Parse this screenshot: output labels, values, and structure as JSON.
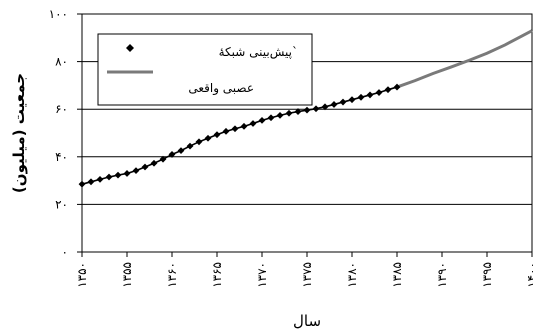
{
  "chart_data": {
    "type": "line",
    "xlabel": "سال",
    "ylabel": "جمعیت (میلیون)",
    "x_tick_labels": [
      "۱۳۵۰",
      "۱۳۵۵",
      "۱۳۶۰",
      "۱۳۶۵",
      "۱۳۷۰",
      "۱۳۷۵",
      "۱۳۸۰",
      "۱۳۸۵",
      "۱۳۹۰",
      "۱۳۹۵",
      "۱۴۰۰"
    ],
    "x_ticks": [
      1350,
      1355,
      1360,
      1365,
      1370,
      1375,
      1380,
      1385,
      1390,
      1395,
      1400
    ],
    "y_tick_labels": [
      "۰",
      "۲۰",
      "۴۰",
      "۶۰",
      "۸۰",
      "۱۰۰"
    ],
    "y_ticks": [
      0,
      20,
      40,
      60,
      80,
      100
    ],
    "xlim": [
      1350,
      1400
    ],
    "ylim": [
      0,
      100
    ],
    "grid": "horizontal",
    "legend_position": "top-left",
    "legend": [
      {
        "label": "پیش‌بینی شبکۀ`",
        "marker": "diamond"
      },
      {
        "label": "عصبی واقعی",
        "marker": "line"
      }
    ],
    "series": [
      {
        "marker": "diamond",
        "color": "#000000",
        "x": [
          1350,
          1351,
          1352,
          1353,
          1354,
          1355,
          1356,
          1357,
          1358,
          1359,
          1360,
          1361,
          1362,
          1363,
          1364,
          1365,
          1366,
          1367,
          1368,
          1369,
          1370,
          1371,
          1372,
          1373,
          1374,
          1375,
          1376,
          1377,
          1378,
          1379,
          1380,
          1381,
          1382,
          1383,
          1384,
          1385
        ],
        "y": [
          28.5,
          29.5,
          30.5,
          31.5,
          32.3,
          33.0,
          34.2,
          35.7,
          37.3,
          39.0,
          41.0,
          42.6,
          44.5,
          46.3,
          47.8,
          49.3,
          50.7,
          51.8,
          52.8,
          54.0,
          55.3,
          56.4,
          57.4,
          58.3,
          59.0,
          59.6,
          60.2,
          61.0,
          62.0,
          63.0,
          64.0,
          65.0,
          66.0,
          67.0,
          68.2,
          69.3
        ]
      },
      {
        "marker": "line",
        "color": "#7a7a7a",
        "x": [
          1385,
          1387,
          1389,
          1391,
          1393,
          1395,
          1397,
          1399,
          1400
        ],
        "y": [
          69.3,
          72.0,
          75.0,
          77.7,
          80.5,
          83.5,
          87.0,
          91.0,
          93.0
        ]
      }
    ]
  },
  "colors": {
    "plot_background": "#ffffff",
    "grid": "#000000",
    "predicted": "#000000",
    "actual": "#7a7a7a"
  }
}
